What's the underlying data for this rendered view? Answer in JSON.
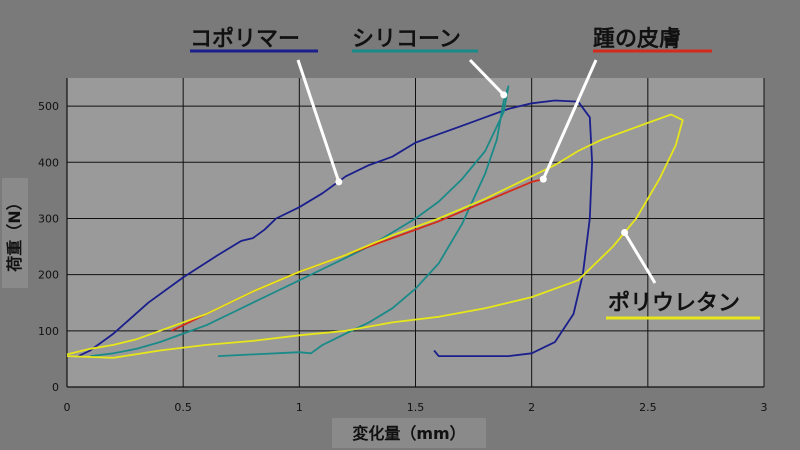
{
  "chart_data": {
    "type": "line",
    "title": "",
    "xlabel": "変化量（mm）",
    "ylabel": "荷重（N）",
    "xlim": [
      0,
      3
    ],
    "ylim": [
      0,
      550
    ],
    "xticks": [
      "0",
      "0.5",
      "1",
      "1.5",
      "2",
      "2.5",
      "3"
    ],
    "yticks": [
      "0",
      "100",
      "200",
      "300",
      "400",
      "500"
    ],
    "grid": true,
    "series": [
      {
        "name": "コポリマー",
        "color": "#1a1f8c",
        "points": [
          [
            0.05,
            55
          ],
          [
            0.1,
            65
          ],
          [
            0.2,
            95
          ],
          [
            0.35,
            150
          ],
          [
            0.5,
            195
          ],
          [
            0.65,
            235
          ],
          [
            0.75,
            260
          ],
          [
            0.8,
            265
          ],
          [
            0.85,
            280
          ],
          [
            0.9,
            300
          ],
          [
            1.0,
            320
          ],
          [
            1.1,
            345
          ],
          [
            1.2,
            375
          ],
          [
            1.3,
            395
          ],
          [
            1.4,
            410
          ],
          [
            1.5,
            435
          ],
          [
            1.6,
            450
          ],
          [
            1.7,
            465
          ],
          [
            1.8,
            480
          ],
          [
            1.9,
            495
          ],
          [
            2.0,
            505
          ],
          [
            2.1,
            510
          ],
          [
            2.2,
            508
          ],
          [
            2.25,
            480
          ],
          [
            2.26,
            400
          ],
          [
            2.25,
            300
          ],
          [
            2.22,
            200
          ],
          [
            2.18,
            130
          ],
          [
            2.1,
            80
          ],
          [
            2.0,
            60
          ],
          [
            1.9,
            55
          ],
          [
            1.7,
            55
          ],
          [
            1.6,
            55
          ],
          [
            1.58,
            65
          ]
        ]
      },
      {
        "name": "シリコーン",
        "color": "#1a8a88",
        "points": [
          [
            0.65,
            55
          ],
          [
            0.8,
            58
          ],
          [
            1.0,
            62
          ],
          [
            1.05,
            60
          ],
          [
            1.1,
            75
          ],
          [
            1.2,
            95
          ],
          [
            1.3,
            115
          ],
          [
            1.4,
            140
          ],
          [
            1.5,
            175
          ],
          [
            1.6,
            220
          ],
          [
            1.7,
            290
          ],
          [
            1.8,
            380
          ],
          [
            1.85,
            440
          ],
          [
            1.88,
            510
          ],
          [
            1.9,
            535
          ],
          [
            1.88,
            490
          ],
          [
            1.8,
            420
          ],
          [
            1.7,
            370
          ],
          [
            1.6,
            330
          ],
          [
            1.5,
            300
          ],
          [
            1.4,
            275
          ],
          [
            1.3,
            250
          ],
          [
            1.2,
            230
          ],
          [
            1.1,
            210
          ],
          [
            1.0,
            190
          ],
          [
            0.9,
            170
          ],
          [
            0.8,
            150
          ],
          [
            0.7,
            130
          ],
          [
            0.6,
            110
          ],
          [
            0.5,
            95
          ],
          [
            0.4,
            80
          ],
          [
            0.3,
            68
          ],
          [
            0.2,
            60
          ],
          [
            0.1,
            55
          ]
        ]
      },
      {
        "name": "踵の皮膚",
        "color": "#d42a1a",
        "points": [
          [
            0.45,
            100
          ],
          [
            0.6,
            130
          ],
          [
            0.8,
            170
          ],
          [
            1.0,
            205
          ],
          [
            1.2,
            235
          ],
          [
            1.4,
            265
          ],
          [
            1.6,
            295
          ],
          [
            1.8,
            330
          ],
          [
            2.0,
            365
          ],
          [
            2.05,
            370
          ]
        ]
      },
      {
        "name": "ポリウレタン",
        "color": "#e6e61a",
        "points": [
          [
            0.0,
            55
          ],
          [
            0.2,
            52
          ],
          [
            0.4,
            65
          ],
          [
            0.6,
            75
          ],
          [
            0.8,
            82
          ],
          [
            1.0,
            92
          ],
          [
            1.2,
            100
          ],
          [
            1.4,
            115
          ],
          [
            1.6,
            125
          ],
          [
            1.8,
            140
          ],
          [
            2.0,
            160
          ],
          [
            2.2,
            190
          ],
          [
            2.35,
            250
          ],
          [
            2.45,
            300
          ],
          [
            2.55,
            370
          ],
          [
            2.62,
            430
          ],
          [
            2.65,
            475
          ],
          [
            2.6,
            485
          ],
          [
            2.5,
            470
          ],
          [
            2.4,
            455
          ],
          [
            2.3,
            440
          ],
          [
            2.2,
            420
          ],
          [
            2.1,
            395
          ],
          [
            2.0,
            375
          ],
          [
            1.8,
            335
          ],
          [
            1.6,
            300
          ],
          [
            1.4,
            270
          ],
          [
            1.2,
            235
          ],
          [
            1.0,
            205
          ],
          [
            0.8,
            170
          ],
          [
            0.6,
            130
          ],
          [
            0.4,
            100
          ],
          [
            0.3,
            85
          ],
          [
            0.2,
            75
          ],
          [
            0.1,
            68
          ],
          [
            0.0,
            58
          ]
        ]
      }
    ]
  }
}
